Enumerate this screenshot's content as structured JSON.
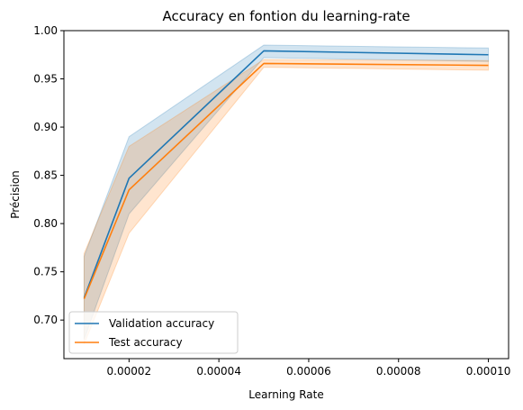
{
  "chart_data": {
    "type": "line",
    "title": "Accuracy en fontion du learning-rate",
    "xlabel": "Learning Rate",
    "ylabel": "Précision",
    "x": [
      1e-05,
      2e-05,
      5e-05,
      0.0001
    ],
    "xlim": [
      5.5e-06,
      0.0001045
    ],
    "ylim": [
      0.66,
      1.0
    ],
    "xticks": [
      2e-05,
      4e-05,
      6e-05,
      8e-05,
      0.0001
    ],
    "xtick_labels": [
      "0.00002",
      "0.00004",
      "0.00006",
      "0.00008",
      "0.00010"
    ],
    "yticks": [
      0.7,
      0.75,
      0.8,
      0.85,
      0.9,
      0.95,
      1.0
    ],
    "ytick_labels": [
      "0.70",
      "0.75",
      "0.80",
      "0.85",
      "0.90",
      "0.95",
      "1.00"
    ],
    "grid": false,
    "legend_position": "lower-left",
    "series": [
      {
        "name": "Validation accuracy",
        "color": "#1f77b4",
        "values": [
          0.723,
          0.847,
          0.979,
          0.975
        ],
        "band_low": [
          0.68,
          0.81,
          0.972,
          0.968
        ],
        "band_high": [
          0.766,
          0.89,
          0.985,
          0.982
        ]
      },
      {
        "name": "Test accuracy",
        "color": "#ff7f0e",
        "values": [
          0.722,
          0.835,
          0.966,
          0.964
        ],
        "band_low": [
          0.675,
          0.79,
          0.962,
          0.959
        ],
        "band_high": [
          0.769,
          0.88,
          0.97,
          0.969
        ]
      }
    ]
  }
}
